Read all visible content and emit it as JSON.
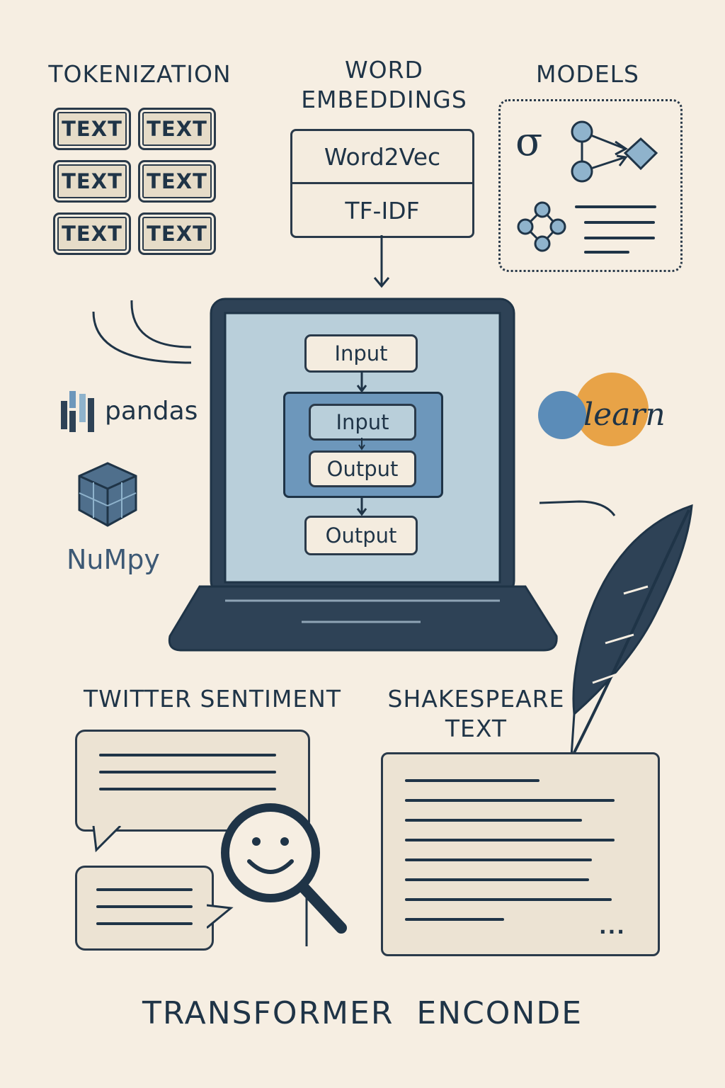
{
  "sections": {
    "tokenization": {
      "title": "TOKENIZATION",
      "tokens": [
        "TEXT",
        "TEXT",
        "TEXT",
        "TEXT",
        "TEXT",
        "TEXT"
      ]
    },
    "word_embeddings": {
      "title": "WORD\nEMBEDDINGS",
      "items": [
        "Word2Vec",
        "TF-IDF"
      ]
    },
    "models": {
      "title": "MODELS",
      "sigma_symbol": "σ"
    },
    "laptop_flow": {
      "outer_input": "Input",
      "inner_input": "Input",
      "inner_output": "Output",
      "outer_output": "Output"
    },
    "libraries": {
      "pandas": "pandas",
      "numpy": "NuMpy",
      "sklearn": "learn"
    },
    "twitter": {
      "title": "TWITTER SENTIMENT"
    },
    "shakespeare": {
      "title": "SHAKESPEARE\nTEXT",
      "ellipsis": "..."
    }
  },
  "footer": {
    "title": "TRANSFORMER  ENCONDE"
  },
  "colors": {
    "background": "#f6eee2",
    "ink": "#1f3447",
    "screen": "#b9cfda",
    "accent_blue": "#6f9bc0",
    "accent_orange": "#e8a347"
  }
}
